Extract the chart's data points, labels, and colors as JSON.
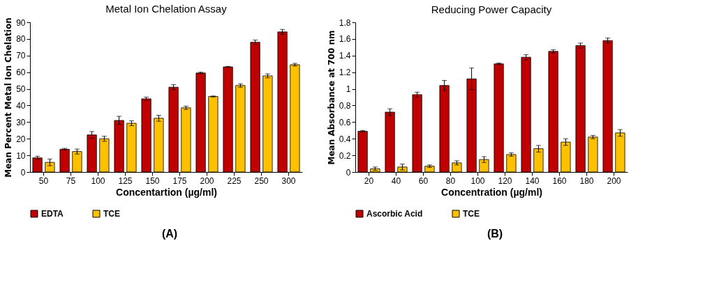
{
  "chart_data": [
    {
      "type": "bar",
      "title": "Metal Ion Chelation Assay",
      "xlabel": "Concentartion (µg/ml)",
      "ylabel": "Mean Percent Metal Ion Chelation",
      "categories": [
        "50",
        "75",
        "100",
        "125",
        "150",
        "175",
        "200",
        "225",
        "250",
        "300"
      ],
      "series": [
        {
          "name": "EDTA",
          "color": "#c00000",
          "values": [
            8.5,
            13.7,
            22.3,
            31,
            44,
            51,
            59.5,
            63.2,
            78,
            84.2
          ],
          "errors": [
            1,
            0.5,
            2,
            2.5,
            1,
            1.5,
            0.5,
            0.3,
            1.3,
            1.5
          ]
        },
        {
          "name": "TCE",
          "color": "#ffc000",
          "values": [
            5.8,
            12.3,
            20,
            29.3,
            32.3,
            38.6,
            45.4,
            52,
            57.8,
            64.5
          ],
          "errors": [
            2,
            1.5,
            1.5,
            1.5,
            1.8,
            1,
            0.3,
            1,
            1.2,
            0.8
          ]
        }
      ],
      "ylim": [
        0,
        90
      ],
      "yticks": [
        0,
        10,
        20,
        30,
        40,
        50,
        60,
        70,
        80,
        90
      ],
      "grid": false,
      "legend": "bottom",
      "annotations": [
        "(A)"
      ]
    },
    {
      "type": "bar",
      "title": "Reducing Power Capacity",
      "xlabel": "Concentration (µg/ml)",
      "ylabel": "Mean Absorbance at 700 nm",
      "categories": [
        "20",
        "40",
        "60",
        "80",
        "100",
        "120",
        "140",
        "160",
        "180",
        "200"
      ],
      "series": [
        {
          "name": "Ascorbic Acid",
          "color": "#c00000",
          "values": [
            0.49,
            0.72,
            0.93,
            1.04,
            1.12,
            1.3,
            1.38,
            1.45,
            1.52,
            1.58
          ],
          "errors": [
            0.01,
            0.04,
            0.03,
            0.06,
            0.13,
            0.01,
            0.03,
            0.02,
            0.03,
            0.03
          ]
        },
        {
          "name": "TCE",
          "color": "#ffc000",
          "values": [
            0.04,
            0.06,
            0.07,
            0.11,
            0.15,
            0.21,
            0.28,
            0.36,
            0.42,
            0.47
          ],
          "errors": [
            0.02,
            0.035,
            0.015,
            0.025,
            0.035,
            0.02,
            0.04,
            0.04,
            0.02,
            0.04
          ]
        }
      ],
      "ylim": [
        0,
        1.8
      ],
      "yticks": [
        0,
        0.2,
        0.4,
        0.6,
        0.8,
        1,
        1.2,
        1.4,
        1.6,
        1.8
      ],
      "grid": false,
      "legend": "bottom",
      "annotations": [
        "(B)"
      ]
    }
  ]
}
